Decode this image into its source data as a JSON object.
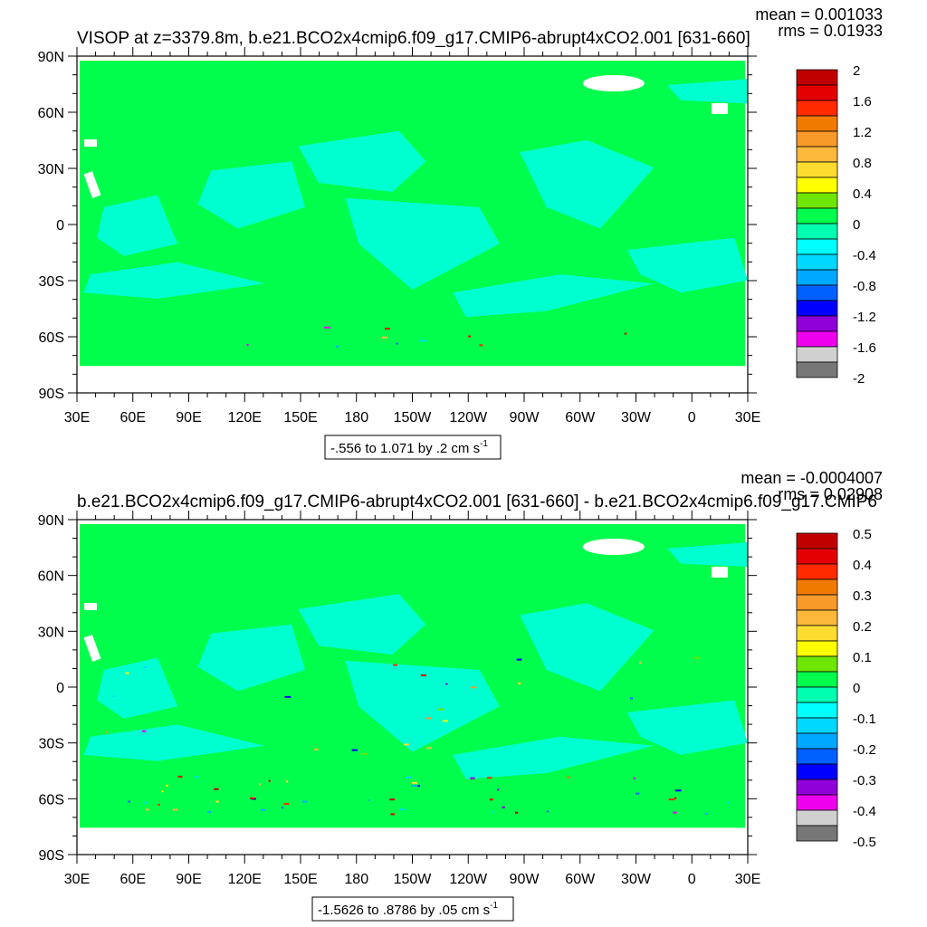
{
  "palette": {
    "ocean_background": "#00ff4c",
    "cyan_patch": "#00ffd0",
    "land_gap": "#ffffff",
    "frame": "#000000"
  },
  "chart_data": [
    {
      "type": "heatmap",
      "title": "VISOP at z=3379.8m, b.e21.BCO2x4cmip6.f09_g17.CMIP6-abrupt4xCO2.001 [631-660]",
      "stats": [
        "mean = 0.001033",
        "rms = 0.01933"
      ],
      "x_ticks": [
        "30E",
        "60E",
        "90E",
        "120E",
        "150E",
        "180",
        "150W",
        "120W",
        "90W",
        "60W",
        "30W",
        "0",
        "30E"
      ],
      "y_ticks": [
        "90N",
        "60N",
        "30N",
        "0",
        "30S",
        "60S",
        "90S"
      ],
      "range_note": "-.556 to 1.071 by .2 cm s",
      "range_exp": "-1",
      "colorbar": {
        "labels": [
          "2",
          "1.6",
          "1.2",
          "0.8",
          "0.4",
          "0",
          "-0.4",
          "-0.8",
          "-1.2",
          "-1.6",
          "-2"
        ],
        "colors": [
          "#c00000",
          "#e40000",
          "#ff2a00",
          "#f07a00",
          "#f79a2a",
          "#fbb83a",
          "#fddc2f",
          "#ffff00",
          "#6ee600",
          "#00ff4c",
          "#00ffb0",
          "#00ffff",
          "#00d8ff",
          "#00a8ff",
          "#0060ff",
          "#0000ff",
          "#9000d8",
          "#ee00ee",
          "#d0d0d0",
          "#777777"
        ]
      }
    },
    {
      "type": "heatmap",
      "title": "b.e21.BCO2x4cmip6.f09_g17.CMIP6-abrupt4xCO2.001 [631-660] - b.e21.BCO2x4cmip6.f09_g17.CMIP6",
      "stats": [
        "mean = -0.0004007",
        "rms = 0.02908"
      ],
      "x_ticks": [
        "30E",
        "60E",
        "90E",
        "120E",
        "150E",
        "180",
        "150W",
        "120W",
        "90W",
        "60W",
        "30W",
        "0",
        "30E"
      ],
      "y_ticks": [
        "90N",
        "60N",
        "30N",
        "0",
        "30S",
        "60S",
        "90S"
      ],
      "range_note": "-1.5626 to .8786 by .05 cm s",
      "range_exp": "-1",
      "colorbar": {
        "labels": [
          "0.5",
          "0.4",
          "0.3",
          "0.2",
          "0.1",
          "0",
          "-0.1",
          "-0.2",
          "-0.3",
          "-0.4",
          "-0.5"
        ],
        "colors": [
          "#c00000",
          "#e40000",
          "#ff2a00",
          "#f07a00",
          "#f79a2a",
          "#fbb83a",
          "#fddc2f",
          "#ffff00",
          "#6ee600",
          "#00ff4c",
          "#00ffb0",
          "#00ffff",
          "#00d8ff",
          "#00a8ff",
          "#0060ff",
          "#0000ff",
          "#9000d8",
          "#ee00ee",
          "#d0d0d0",
          "#777777"
        ]
      }
    }
  ]
}
